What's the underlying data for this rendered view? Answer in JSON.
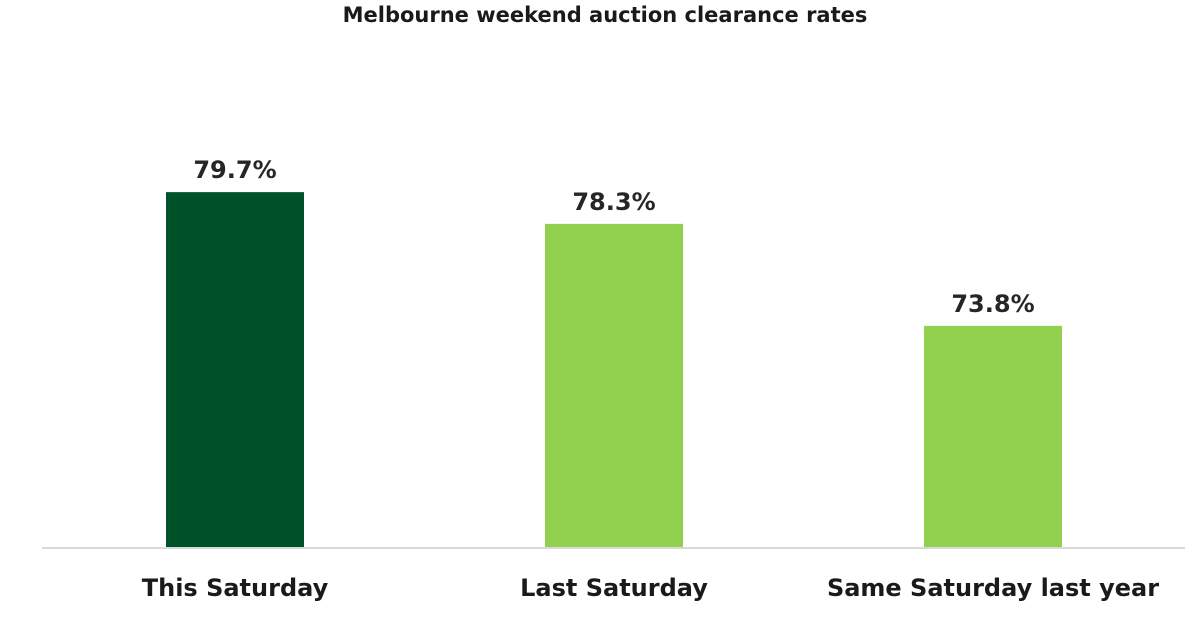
{
  "chart_data": {
    "type": "bar",
    "title": "Melbourne weekend auction clearance rates",
    "xlabel": "",
    "ylabel": "",
    "categories": [
      "This Saturday",
      "Last Saturday",
      "Same Saturday last year"
    ],
    "values": [
      79.7,
      78.3,
      73.8
    ],
    "value_labels": [
      "79.7%",
      "78.3%",
      "73.8%"
    ],
    "value_unit": "%",
    "ylim": [
      64,
      82
    ],
    "grid": false,
    "legend": "none",
    "colors": {
      "highlight": "#00522a",
      "default": "#92d050",
      "baseline": "#d9d9d9",
      "text": "#1a1a1a"
    },
    "highlight_index": 0
  }
}
